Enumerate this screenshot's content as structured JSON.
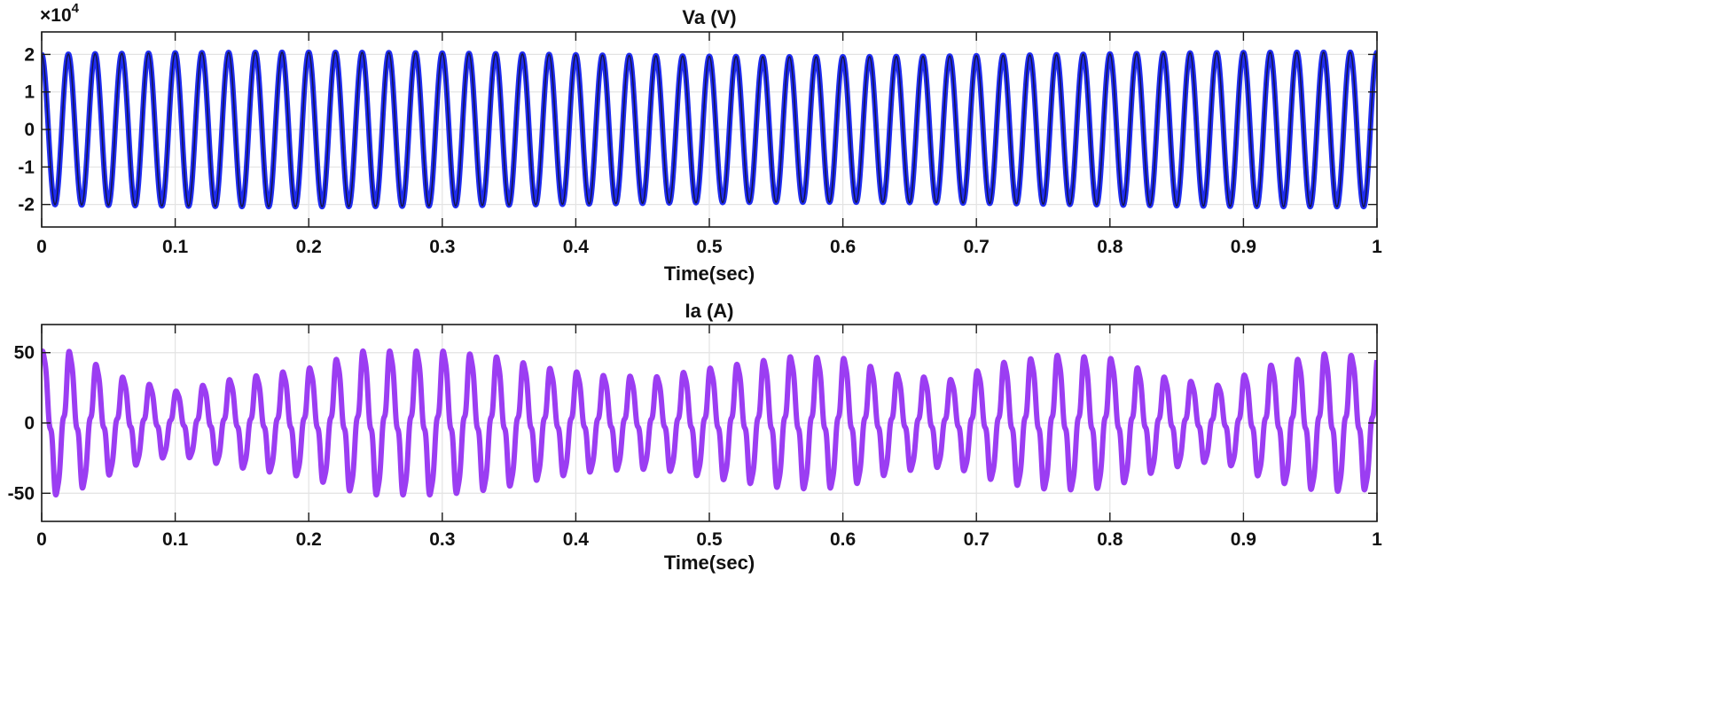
{
  "chart_data": [
    {
      "type": "line",
      "title": "Va (V)",
      "xlabel": "Time(sec)",
      "ylabel": "",
      "exponent_label": {
        "base": "×10",
        "power": "4"
      },
      "xlim": [
        0,
        1
      ],
      "ylim": [
        -2.6,
        2.6
      ],
      "xticks": [
        0,
        0.1,
        0.2,
        0.3,
        0.4,
        0.5,
        0.6,
        0.7,
        0.8,
        0.9,
        1
      ],
      "xtick_labels": [
        "0",
        "0.1",
        "0.2",
        "0.3",
        "0.4",
        "0.5",
        "0.6",
        "0.7",
        "0.8",
        "0.9",
        "1"
      ],
      "yticks": [
        -2,
        -1,
        0,
        1,
        2
      ],
      "ytick_labels": [
        "-2",
        "-1",
        "0",
        "1",
        "2"
      ],
      "grid": true,
      "series": [
        {
          "name": "Va",
          "color": "#1f2cf0",
          "model": "sine",
          "amplitude": 2.0,
          "frequency_hz": 50,
          "phase_deg": 90,
          "ripple": 0.03,
          "dark_inner": "#101028"
        }
      ]
    },
    {
      "type": "line",
      "title": "Ia (A)",
      "xlabel": "Time(sec)",
      "ylabel": "",
      "xlim": [
        0,
        1
      ],
      "ylim": [
        -70,
        70
      ],
      "xticks": [
        0,
        0.1,
        0.2,
        0.3,
        0.4,
        0.5,
        0.6,
        0.7,
        0.8,
        0.9,
        1
      ],
      "xtick_labels": [
        "0",
        "0.1",
        "0.2",
        "0.3",
        "0.4",
        "0.5",
        "0.6",
        "0.7",
        "0.8",
        "0.9",
        "1"
      ],
      "yticks": [
        -50,
        0,
        50
      ],
      "ytick_labels": [
        "-50",
        "0",
        "50"
      ],
      "grid": true,
      "series": [
        {
          "name": "Ia",
          "color": "#9b3df2",
          "model": "modulated_sine",
          "frequency_hz": 50,
          "envelope_t": [
            0,
            0.02,
            0.06,
            0.1,
            0.14,
            0.2,
            0.24,
            0.3,
            0.34,
            0.38,
            0.42,
            0.46,
            0.5,
            0.56,
            0.6,
            0.64,
            0.68,
            0.72,
            0.76,
            0.8,
            0.84,
            0.88,
            0.92,
            0.96,
            1.0
          ],
          "envelope_amp": [
            50,
            50,
            32,
            22,
            30,
            38,
            50,
            50,
            46,
            38,
            33,
            32,
            38,
            46,
            45,
            34,
            30,
            42,
            47,
            45,
            32,
            26,
            40,
            48,
            46
          ],
          "distortion": 0.35
        }
      ]
    }
  ]
}
